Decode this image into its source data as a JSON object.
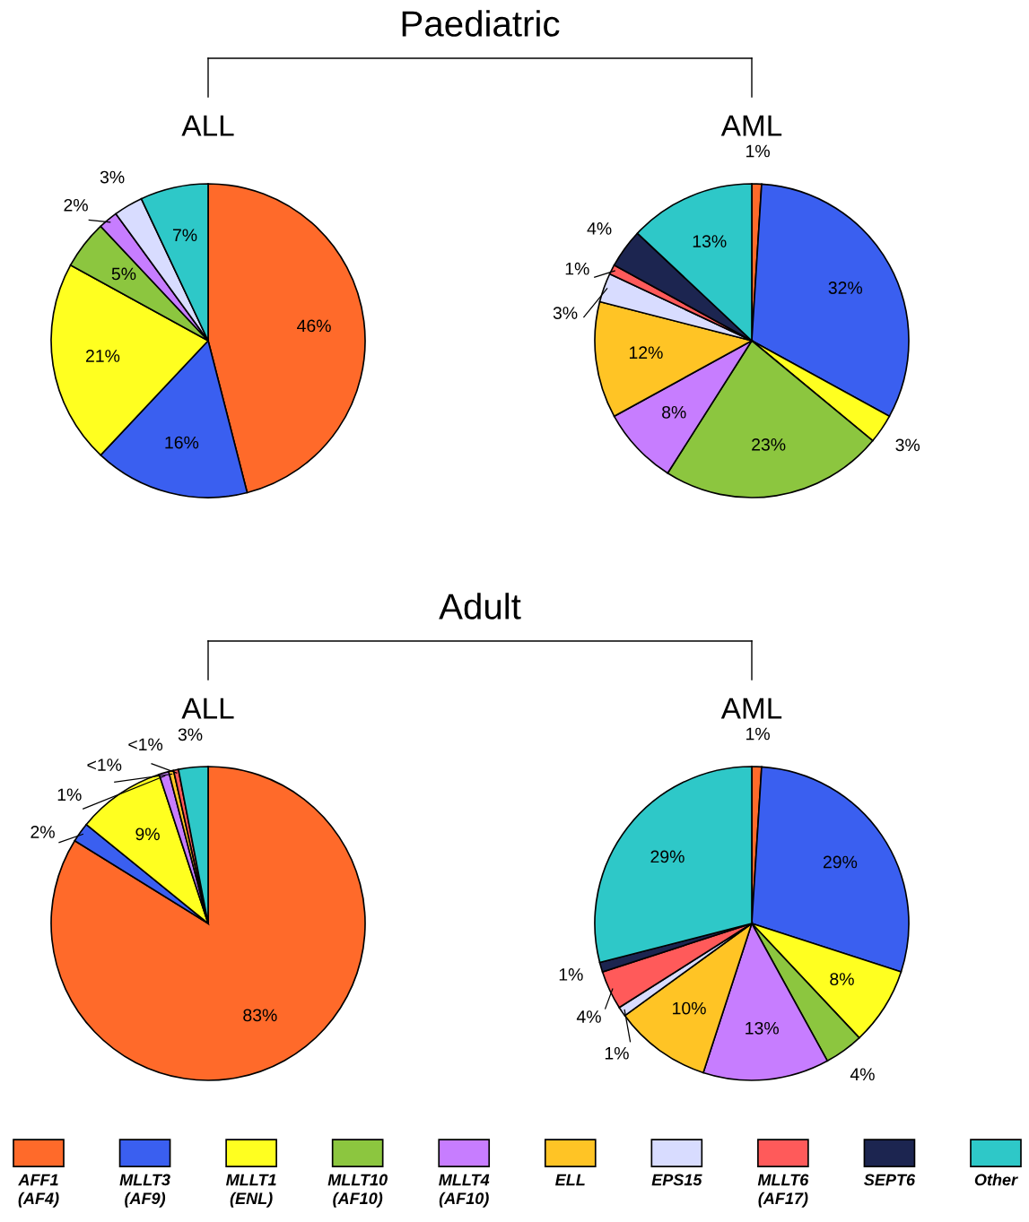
{
  "chart_data": [
    {
      "type": "pie",
      "title": "ALL",
      "annotations": [
        "Paediatric"
      ],
      "categories": [
        null,
        null,
        null,
        null,
        null,
        null,
        null
      ],
      "values": [
        46,
        16,
        21,
        5,
        2,
        3,
        7
      ],
      "value_labels": [
        "46%",
        "16%",
        "21%",
        "5%",
        "2%",
        "3%",
        "7%"
      ],
      "colors": [
        "#ff6a2a",
        "#3a5ff0",
        "#ffff20",
        "#8cc63f",
        "#c77dff",
        "#d8dcff",
        "#2ec8c8"
      ]
    },
    {
      "type": "pie",
      "title": "AML",
      "legend": "bottom",
      "categories": [
        "AFF1\n(AF4)",
        "MLLT3\n(AF9)",
        "MLLT1\n(ENL)",
        "MLLT10\n(AF10)",
        "MLLT4\n(AF10)",
        "ELL",
        "EPS15",
        "MLLT6\n(AF17)",
        "SEPT6",
        "Other"
      ],
      "values": [
        1,
        32,
        3,
        23,
        8,
        12,
        3,
        1,
        4,
        13
      ],
      "value_labels": [
        "1%",
        "32%",
        "3%",
        "23%",
        "8%",
        "12%",
        "3%",
        "1%",
        "4%",
        "13%"
      ],
      "colors": [
        "#ff6a2a",
        "#3a5ff0",
        "#ffff20",
        "#8cc63f",
        "#c77dff",
        "#ffc425",
        "#d8dcff",
        "#ff5a5a",
        "#1c2550",
        "#2ec8c8"
      ]
    },
    {
      "type": "pie",
      "title": "ALL",
      "annotations": [
        "Adult"
      ],
      "categories": [
        null,
        null,
        null,
        null,
        null,
        null,
        null
      ],
      "values": [
        83,
        2,
        9,
        1,
        0.5,
        0.5,
        3
      ],
      "value_labels": [
        "83%",
        "2%",
        "9%",
        "1%",
        "<1%",
        "<1%",
        "3%"
      ],
      "colors": [
        "#ff6a2a",
        "#3a5ff0",
        "#ffff20",
        "#c77dff",
        "#ffc425",
        "#ff5a5a",
        "#2ec8c8"
      ]
    },
    {
      "type": "pie",
      "title": "AML",
      "categories": [
        null,
        null,
        null,
        null,
        null,
        null,
        null,
        null,
        null,
        null
      ],
      "values": [
        1,
        29,
        8,
        4,
        13,
        10,
        1,
        4,
        1,
        29
      ],
      "value_labels": [
        "1%",
        "29%",
        "8%",
        "4%",
        "13%",
        "10%",
        "1%",
        "4%",
        "1%",
        "29%"
      ],
      "colors": [
        "#ff6a2a",
        "#3a5ff0",
        "#ffff20",
        "#8cc63f",
        "#c77dff",
        "#ffc425",
        "#d8dcff",
        "#ff5a5a",
        "#1c2550",
        "#2ec8c8"
      ]
    }
  ]
}
